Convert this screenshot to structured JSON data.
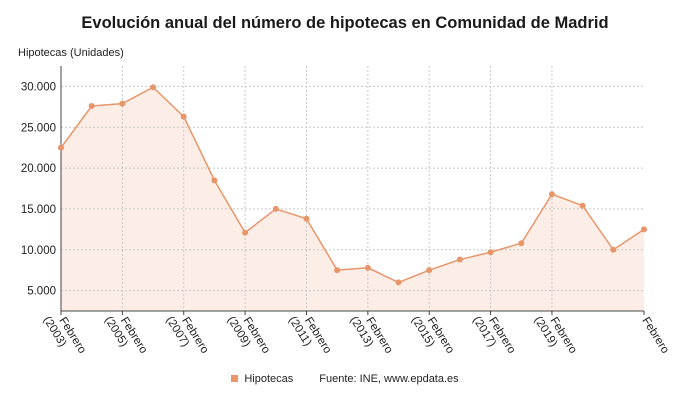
{
  "colors": {
    "series": "#E8956A",
    "fill": "#FCEEE6",
    "grid": "#c8c8c8",
    "axis": "#444444"
  },
  "chart_data": {
    "type": "line",
    "title": "Evolución anual del número de hipotecas en Comunidad de Madrid",
    "ylabel": "Hipotecas (Unidades)",
    "ylim": [
      2500,
      32500
    ],
    "yticks": [
      "5.000",
      "10.000",
      "15.000",
      "20.000",
      "25.000",
      "30.000"
    ],
    "ytick_values": [
      5000,
      10000,
      15000,
      20000,
      25000,
      30000
    ],
    "xtick_labels": [
      {
        "line1": "Febrero",
        "line2": "(2003)"
      },
      {
        "line1": "Febrero",
        "line2": "(2005)"
      },
      {
        "line1": "Febrero",
        "line2": "(2007)"
      },
      {
        "line1": "Febrero",
        "line2": "(2009)"
      },
      {
        "line1": "Febrero",
        "line2": "(2011)"
      },
      {
        "line1": "Febrero",
        "line2": "(2013)"
      },
      {
        "line1": "Febrero",
        "line2": "(2015)"
      },
      {
        "line1": "Febrero",
        "line2": "(2017)"
      },
      {
        "line1": "Febrero",
        "line2": "(2019)"
      },
      {
        "line1": "Febrero",
        "line2": ""
      }
    ],
    "xtick_positions": [
      2003,
      2005,
      2007,
      2009,
      2011,
      2013,
      2015,
      2017,
      2019,
      2022
    ],
    "grid": true,
    "legend_position": "bottom",
    "series": [
      {
        "name": "Hipotecas",
        "x": [
          2003,
          2004,
          2005,
          2006,
          2007,
          2008,
          2009,
          2010,
          2011,
          2012,
          2013,
          2014,
          2015,
          2016,
          2017,
          2018,
          2019,
          2020,
          2021,
          2022
        ],
        "values": [
          22500,
          27600,
          27900,
          29900,
          26300,
          18500,
          12100,
          15000,
          13800,
          7500,
          7800,
          6000,
          7500,
          8800,
          9700,
          10800,
          16800,
          15400,
          10000,
          12500
        ]
      }
    ]
  },
  "legend": {
    "series_label": "Hipotecas",
    "source": "Fuente: INE, www.epdata.es"
  }
}
